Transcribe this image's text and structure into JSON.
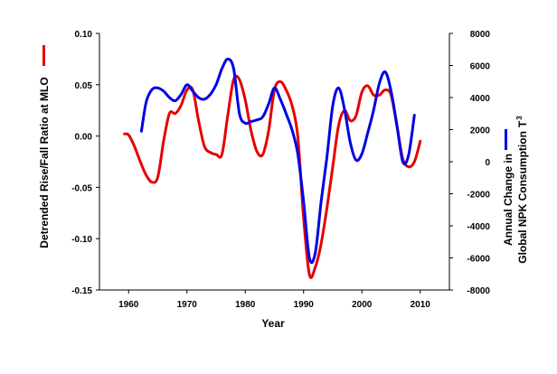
{
  "chart_data": {
    "type": "line",
    "title": "",
    "xlabel": "Year",
    "ylabel_left": "Detrended Rise/Fall Ratio at MLO",
    "ylabel_right_line1": "Annual Change in",
    "ylabel_right_line2": "Global NPK Consumption",
    "ylabel_right_unit": "T",
    "ylabel_right_unit_exp": "3",
    "xlim": [
      1955,
      2015
    ],
    "ylim_left": [
      -0.15,
      0.1
    ],
    "ylim_right": [
      -8000,
      8000
    ],
    "x_ticks": [
      1960,
      1970,
      1980,
      1990,
      2000,
      2010
    ],
    "x_tick_labels": [
      "1960",
      "1970",
      "1980",
      "1990",
      "2000",
      "2010"
    ],
    "y_left_ticks": [
      -0.15,
      -0.1,
      -0.05,
      0.0,
      0.05,
      0.1
    ],
    "y_left_tick_labels": [
      "-0.15",
      "-0.10",
      "-0.05",
      "0.00",
      "0.05",
      "0.10"
    ],
    "y_right_ticks": [
      -8000,
      -6000,
      -4000,
      -2000,
      0,
      2000,
      4000,
      6000,
      8000
    ],
    "y_right_tick_labels": [
      "-8000",
      "-6000",
      "-4000",
      "-2000",
      "0",
      "2000",
      "4000",
      "6000",
      "8000"
    ],
    "grid": false,
    "legend": "axis-title-color-swatches",
    "series": [
      {
        "axis": "left",
        "color": "#e60000",
        "x": [
          1959.3,
          1960,
          1961,
          1962,
          1963,
          1964,
          1965,
          1966,
          1967,
          1968,
          1969,
          1970,
          1971,
          1972,
          1973,
          1974,
          1975,
          1976,
          1977,
          1978,
          1979,
          1980,
          1981,
          1982,
          1983,
          1984,
          1985,
          1986,
          1987,
          1988,
          1989,
          1990,
          1991,
          1992,
          1993,
          1994,
          1995,
          1996,
          1997,
          1998,
          1999,
          2000,
          2001,
          2002,
          2003,
          2004,
          2005,
          2006,
          2007,
          2008,
          2009,
          2010
        ],
        "y": [
          0.002,
          0.001,
          -0.01,
          -0.025,
          -0.038,
          -0.045,
          -0.04,
          -0.005,
          0.022,
          0.022,
          0.03,
          0.045,
          0.045,
          0.015,
          -0.01,
          -0.016,
          -0.018,
          -0.018,
          0.02,
          0.055,
          0.055,
          0.035,
          0.005,
          -0.015,
          -0.018,
          0.005,
          0.045,
          0.053,
          0.045,
          0.03,
          0.0,
          -0.08,
          -0.135,
          -0.128,
          -0.105,
          -0.07,
          -0.03,
          0.01,
          0.025,
          0.015,
          0.02,
          0.043,
          0.049,
          0.04,
          0.04,
          0.045,
          0.04,
          0.01,
          -0.022,
          -0.03,
          -0.025,
          -0.005
        ]
      },
      {
        "axis": "right",
        "color": "#0000e6",
        "x": [
          1962.2,
          1963,
          1964,
          1965,
          1966,
          1967,
          1968,
          1969,
          1970,
          1971,
          1972,
          1973,
          1974,
          1975,
          1976,
          1977,
          1978,
          1979,
          1980,
          1981,
          1982,
          1983,
          1984,
          1985,
          1986,
          1987,
          1988,
          1989,
          1990,
          1991,
          1992,
          1993,
          1994,
          1995,
          1996,
          1997,
          1998,
          1999,
          2000,
          2001,
          2002,
          2003,
          2004,
          2005,
          2006,
          2007,
          2008,
          2009
        ],
        "y": [
          1900,
          3700,
          4500,
          4600,
          4400,
          4000,
          3800,
          4200,
          4800,
          4400,
          4000,
          3900,
          4200,
          4800,
          5800,
          6400,
          5800,
          3000,
          2400,
          2500,
          2600,
          2800,
          3600,
          4600,
          3900,
          3000,
          2000,
          500,
          -2500,
          -6000,
          -5700,
          -2500,
          300,
          3500,
          4600,
          3300,
          1200,
          100,
          500,
          1800,
          3200,
          4900,
          5600,
          4400,
          2300,
          0,
          400,
          2900
        ]
      }
    ]
  }
}
